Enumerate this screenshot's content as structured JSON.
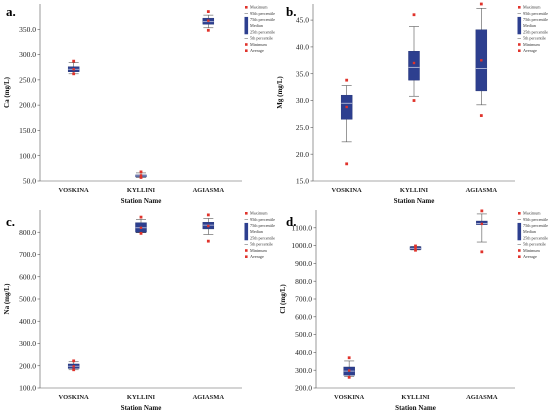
{
  "chart_data": [
    {
      "type": "box",
      "panel_label": "a.",
      "title": "",
      "xlabel": "Station Name",
      "ylabel": "Ca (mg/L)",
      "ylim": [
        50,
        400
      ],
      "yticks": [
        "50.0",
        "100.0",
        "150.0",
        "200.0",
        "250.0",
        "300.0",
        "350.0"
      ],
      "ytick_values": [
        50,
        100,
        150,
        200,
        250,
        300,
        350
      ],
      "categories": [
        "VOSKINA",
        "KYLLINI",
        "AGIASMA"
      ],
      "boxes": [
        {
          "max": 287,
          "p95": 284,
          "q75": 276,
          "median": 271,
          "q25": 266,
          "p5": 262,
          "min": 262,
          "avg": 271
        },
        {
          "max": 68,
          "p95": 66,
          "q75": 62,
          "median": 60,
          "q25": 58,
          "p5": 57,
          "min": 57,
          "avg": 61
        },
        {
          "max": 385,
          "p95": 378,
          "q75": 372,
          "median": 365,
          "q25": 360,
          "p5": 353,
          "min": 348,
          "avg": 367
        }
      ],
      "legend": [
        "Maximum",
        "95th percentile",
        "75th percentile",
        "Median",
        "25th percentile",
        "5th percentile",
        "Minimum",
        "Average"
      ]
    },
    {
      "type": "box",
      "panel_label": "b.",
      "title": "",
      "xlabel": "Station Name",
      "ylabel": "Mg (mg/L)",
      "ylim": [
        15,
        48
      ],
      "yticks": [
        "15.0",
        "20.0",
        "25.0",
        "30.0",
        "35.0",
        "40.0",
        "45.0"
      ],
      "ytick_values": [
        15,
        20,
        25,
        30,
        35,
        40,
        45
      ],
      "categories": [
        "VOSKINA",
        "KYLLINI",
        "AGIASMA"
      ],
      "boxes": [
        {
          "max": 33.8,
          "p95": 32.8,
          "q75": 31.0,
          "median": 29.5,
          "q25": 26.5,
          "p5": 22.3,
          "min": 18.2,
          "avg": 28.8
        },
        {
          "max": 46.0,
          "p95": 43.8,
          "q75": 39.2,
          "median": 36.2,
          "q25": 33.8,
          "p5": 30.8,
          "min": 30.0,
          "avg": 37.0
        },
        {
          "max": 48.0,
          "p95": 47.2,
          "q75": 43.2,
          "median": 36.0,
          "q25": 31.8,
          "p5": 29.2,
          "min": 27.2,
          "avg": 37.5
        }
      ],
      "legend": [
        "Maximum",
        "95th percentile",
        "75th percentile",
        "Median",
        "25th percentile",
        "5th percentile",
        "Minimum",
        "Average"
      ]
    },
    {
      "type": "box",
      "panel_label": "c.",
      "title": "",
      "xlabel": "Station Name",
      "ylabel": "Na (mg/L)",
      "ylim": [
        100,
        900
      ],
      "yticks": [
        "100.0",
        "200.0",
        "300.0",
        "400.0",
        "500.0",
        "600.0",
        "700.0",
        "800.0"
      ],
      "ytick_values": [
        100,
        200,
        300,
        400,
        500,
        600,
        700,
        800
      ],
      "categories": [
        "VOSKINA",
        "KYLLINI",
        "AGIASMA"
      ],
      "boxes": [
        {
          "max": 222,
          "p95": 218,
          "q75": 208,
          "median": 198,
          "q25": 188,
          "p5": 182,
          "min": 182,
          "avg": 197
        },
        {
          "max": 868,
          "p95": 858,
          "q75": 843,
          "median": 820,
          "q25": 800,
          "p5": 798,
          "min": 795,
          "avg": 820
        },
        {
          "max": 878,
          "p95": 862,
          "q75": 845,
          "median": 832,
          "q25": 815,
          "p5": 790,
          "min": 760,
          "avg": 828
        }
      ],
      "legend": [
        "Maximum",
        "95th percentile",
        "75th percentile",
        "Median",
        "25th percentile",
        "5th percentile",
        "Minimum",
        "Average"
      ]
    },
    {
      "type": "box",
      "panel_label": "d.",
      "title": "",
      "xlabel": "Station Name",
      "ylabel": "Cl (mg/L)",
      "ylim": [
        200,
        1200
      ],
      "yticks": [
        "200.0",
        "300.0",
        "400.0",
        "500.0",
        "600.0",
        "700.0",
        "800.0",
        "900.0",
        "1000.0",
        "1100.0"
      ],
      "ytick_values": [
        200,
        300,
        400,
        500,
        600,
        700,
        800,
        900,
        1000,
        1100
      ],
      "categories": [
        "VOSKINA",
        "KYLLINI",
        "AGIASMA"
      ],
      "boxes": [
        {
          "max": 370,
          "p95": 352,
          "q75": 318,
          "median": 295,
          "q25": 272,
          "p5": 265,
          "min": 260,
          "avg": 298
        },
        {
          "max": 998,
          "p95": 995,
          "q75": 994,
          "median": 985,
          "q25": 978,
          "p5": 976,
          "min": 974,
          "avg": 986
        },
        {
          "max": 1195,
          "p95": 1178,
          "q75": 1138,
          "median": 1125,
          "q25": 1118,
          "p5": 1020,
          "min": 965,
          "avg": 1122
        }
      ],
      "legend": [
        "Maximum",
        "95th percentile",
        "75th percentile",
        "Median",
        "25th percentile",
        "5th percentile",
        "Minimum",
        "Average"
      ]
    }
  ],
  "colors": {
    "box_fill": "#2d3f8f",
    "box_stroke": "#1a2a6e",
    "whisker": "#555555",
    "marker": "#e0332b",
    "legend_box": "#2d3f8f"
  }
}
